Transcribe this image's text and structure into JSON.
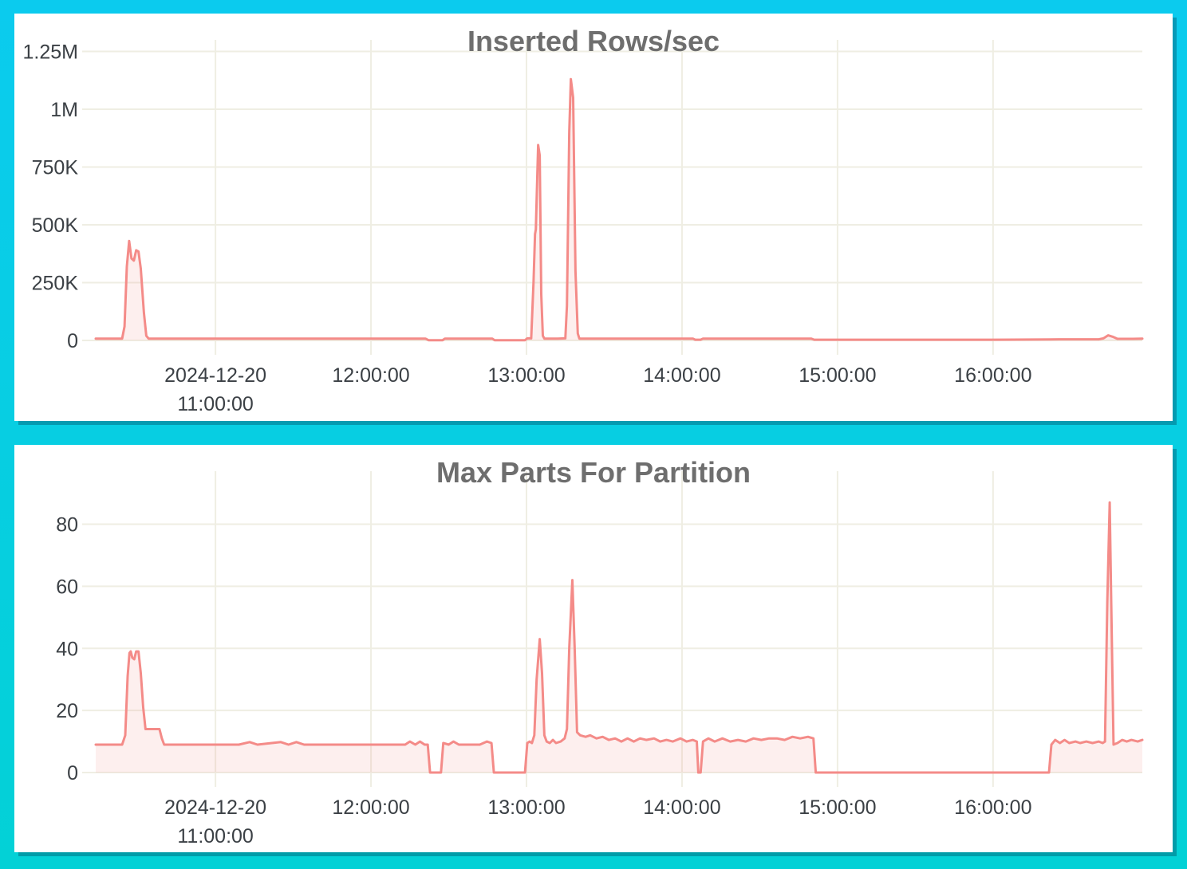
{
  "theme": {
    "background_top": "#0bcbee",
    "background_bottom": "#03d1d6",
    "panel_bg": "#ffffff",
    "line_color": "#f48b88",
    "fill_color": "rgba(242,139,135,0.14)",
    "grid_color": "#efeee3",
    "tick_label_color": "#3b4045",
    "title_color": "#6e6e6e"
  },
  "chart_data": [
    {
      "type": "area",
      "title": "Inserted Rows/sec",
      "xlabel": "",
      "ylabel": "",
      "grid": true,
      "legend": "none",
      "x_unit": "time of day on 2024-12-20, decimal hours",
      "xlim": [
        10.23,
        16.96
      ],
      "ylim": [
        0,
        1300000
      ],
      "x_ticks": [
        {
          "value": 11,
          "label": "2024-12-20\n11:00:00"
        },
        {
          "value": 12,
          "label": "12:00:00"
        },
        {
          "value": 13,
          "label": "13:00:00"
        },
        {
          "value": 14,
          "label": "14:00:00"
        },
        {
          "value": 15,
          "label": "15:00:00"
        },
        {
          "value": 16,
          "label": "16:00:00"
        }
      ],
      "y_ticks": [
        {
          "value": 0,
          "label": "0"
        },
        {
          "value": 250000,
          "label": "250K"
        },
        {
          "value": 500000,
          "label": "500K"
        },
        {
          "value": 750000,
          "label": "750K"
        },
        {
          "value": 1000000,
          "label": "1M"
        },
        {
          "value": 1250000,
          "label": "1.25M"
        }
      ],
      "series": [
        {
          "name": "inserted rows/sec",
          "points": [
            [
              10.23,
              8000
            ],
            [
              10.4,
              8000
            ],
            [
              10.415,
              60000
            ],
            [
              10.43,
              320000
            ],
            [
              10.445,
              430000
            ],
            [
              10.46,
              355000
            ],
            [
              10.475,
              345000
            ],
            [
              10.49,
              390000
            ],
            [
              10.505,
              385000
            ],
            [
              10.52,
              310000
            ],
            [
              10.54,
              120000
            ],
            [
              10.555,
              20000
            ],
            [
              10.57,
              8000
            ],
            [
              11.0,
              8000
            ],
            [
              11.6,
              8000
            ],
            [
              12.0,
              8000
            ],
            [
              12.35,
              8000
            ],
            [
              12.37,
              1000
            ],
            [
              12.46,
              1000
            ],
            [
              12.475,
              8000
            ],
            [
              12.6,
              8000
            ],
            [
              12.78,
              8000
            ],
            [
              12.795,
              1000
            ],
            [
              12.99,
              1000
            ],
            [
              13.005,
              9000
            ],
            [
              13.03,
              9000
            ],
            [
              13.045,
              250000
            ],
            [
              13.055,
              460000
            ],
            [
              13.06,
              480000
            ],
            [
              13.075,
              845000
            ],
            [
              13.085,
              800000
            ],
            [
              13.095,
              200000
            ],
            [
              13.105,
              20000
            ],
            [
              13.115,
              8000
            ],
            [
              13.2,
              8000
            ],
            [
              13.25,
              9000
            ],
            [
              13.26,
              150000
            ],
            [
              13.275,
              900000
            ],
            [
              13.285,
              1130000
            ],
            [
              13.3,
              1050000
            ],
            [
              13.315,
              300000
            ],
            [
              13.33,
              30000
            ],
            [
              13.34,
              8000
            ],
            [
              13.6,
              8000
            ],
            [
              14.0,
              8000
            ],
            [
              14.07,
              8000
            ],
            [
              14.085,
              3000
            ],
            [
              14.12,
              3000
            ],
            [
              14.135,
              8000
            ],
            [
              14.5,
              8000
            ],
            [
              14.83,
              8000
            ],
            [
              14.85,
              3000
            ],
            [
              15.3,
              3000
            ],
            [
              16.0,
              3000
            ],
            [
              16.37,
              4000
            ],
            [
              16.42,
              5000
            ],
            [
              16.68,
              5000
            ],
            [
              16.71,
              9000
            ],
            [
              16.74,
              22000
            ],
            [
              16.77,
              16000
            ],
            [
              16.8,
              7000
            ],
            [
              16.9,
              7000
            ],
            [
              16.96,
              8000
            ]
          ]
        }
      ]
    },
    {
      "type": "area",
      "title": "Max Parts For Partition",
      "xlabel": "",
      "ylabel": "",
      "grid": true,
      "legend": "none",
      "x_unit": "time of day on 2024-12-20, decimal hours",
      "xlim": [
        10.23,
        16.96
      ],
      "ylim": [
        0,
        94
      ],
      "x_ticks": [
        {
          "value": 11,
          "label": "2024-12-20\n11:00:00"
        },
        {
          "value": 12,
          "label": "12:00:00"
        },
        {
          "value": 13,
          "label": "13:00:00"
        },
        {
          "value": 14,
          "label": "14:00:00"
        },
        {
          "value": 15,
          "label": "15:00:00"
        },
        {
          "value": 16,
          "label": "16:00:00"
        }
      ],
      "y_ticks": [
        {
          "value": 0,
          "label": "0"
        },
        {
          "value": 20,
          "label": "20"
        },
        {
          "value": 40,
          "label": "40"
        },
        {
          "value": 60,
          "label": "60"
        },
        {
          "value": 80,
          "label": "80"
        }
      ],
      "series": [
        {
          "name": "max parts for partition",
          "points": [
            [
              10.23,
              9
            ],
            [
              10.4,
              9
            ],
            [
              10.42,
              12
            ],
            [
              10.435,
              31
            ],
            [
              10.447,
              38.5
            ],
            [
              10.455,
              39
            ],
            [
              10.465,
              37
            ],
            [
              10.478,
              36.5
            ],
            [
              10.49,
              39
            ],
            [
              10.505,
              39
            ],
            [
              10.52,
              32
            ],
            [
              10.535,
              21
            ],
            [
              10.55,
              14
            ],
            [
              10.6,
              14
            ],
            [
              10.64,
              14
            ],
            [
              10.655,
              11
            ],
            [
              10.67,
              9
            ],
            [
              10.9,
              9
            ],
            [
              11.15,
              9
            ],
            [
              11.22,
              9.8
            ],
            [
              11.27,
              9
            ],
            [
              11.42,
              9.8
            ],
            [
              11.47,
              9
            ],
            [
              11.52,
              9.8
            ],
            [
              11.57,
              9
            ],
            [
              11.8,
              9
            ],
            [
              12.05,
              9
            ],
            [
              12.22,
              9
            ],
            [
              12.25,
              10
            ],
            [
              12.285,
              9
            ],
            [
              12.315,
              10
            ],
            [
              12.345,
              9
            ],
            [
              12.365,
              9
            ],
            [
              12.38,
              0
            ],
            [
              12.45,
              0
            ],
            [
              12.465,
              9.5
            ],
            [
              12.5,
              9
            ],
            [
              12.53,
              10
            ],
            [
              12.565,
              9
            ],
            [
              12.7,
              9
            ],
            [
              12.745,
              10
            ],
            [
              12.775,
              9.5
            ],
            [
              12.79,
              0
            ],
            [
              12.99,
              0
            ],
            [
              13.005,
              9.5
            ],
            [
              13.02,
              10
            ],
            [
              13.035,
              9.5
            ],
            [
              13.05,
              12
            ],
            [
              13.065,
              30
            ],
            [
              13.085,
              43
            ],
            [
              13.1,
              32
            ],
            [
              13.115,
              12
            ],
            [
              13.13,
              10
            ],
            [
              13.15,
              9.5
            ],
            [
              13.17,
              10.5
            ],
            [
              13.19,
              9.5
            ],
            [
              13.22,
              10
            ],
            [
              13.245,
              11
            ],
            [
              13.26,
              14
            ],
            [
              13.275,
              40
            ],
            [
              13.295,
              62
            ],
            [
              13.31,
              40
            ],
            [
              13.325,
              13
            ],
            [
              13.345,
              12
            ],
            [
              13.38,
              11.5
            ],
            [
              13.41,
              12
            ],
            [
              13.45,
              11
            ],
            [
              13.49,
              11.5
            ],
            [
              13.53,
              10.5
            ],
            [
              13.57,
              11
            ],
            [
              13.61,
              10
            ],
            [
              13.65,
              11
            ],
            [
              13.69,
              10
            ],
            [
              13.73,
              11
            ],
            [
              13.77,
              10.5
            ],
            [
              13.82,
              11
            ],
            [
              13.86,
              10
            ],
            [
              13.9,
              10.5
            ],
            [
              13.94,
              10
            ],
            [
              13.99,
              11
            ],
            [
              14.03,
              10
            ],
            [
              14.07,
              10.5
            ],
            [
              14.095,
              10
            ],
            [
              14.105,
              0
            ],
            [
              14.12,
              0
            ],
            [
              14.135,
              10
            ],
            [
              14.17,
              11
            ],
            [
              14.21,
              10
            ],
            [
              14.26,
              11
            ],
            [
              14.31,
              10
            ],
            [
              14.36,
              10.5
            ],
            [
              14.41,
              10
            ],
            [
              14.46,
              11
            ],
            [
              14.51,
              10.5
            ],
            [
              14.56,
              11
            ],
            [
              14.61,
              11
            ],
            [
              14.66,
              10.5
            ],
            [
              14.71,
              11.5
            ],
            [
              14.76,
              11
            ],
            [
              14.81,
              11.5
            ],
            [
              14.845,
              11
            ],
            [
              14.86,
              0
            ],
            [
              15.2,
              0
            ],
            [
              15.8,
              0
            ],
            [
              16.36,
              0
            ],
            [
              16.375,
              9
            ],
            [
              16.4,
              10.5
            ],
            [
              16.43,
              9.5
            ],
            [
              16.46,
              10.5
            ],
            [
              16.49,
              9.5
            ],
            [
              16.53,
              10
            ],
            [
              16.56,
              9.5
            ],
            [
              16.6,
              10
            ],
            [
              16.64,
              9.5
            ],
            [
              16.68,
              10
            ],
            [
              16.705,
              9.5
            ],
            [
              16.72,
              10
            ],
            [
              16.735,
              55
            ],
            [
              16.75,
              87
            ],
            [
              16.76,
              55
            ],
            [
              16.775,
              9
            ],
            [
              16.8,
              9.5
            ],
            [
              16.83,
              10.5
            ],
            [
              16.86,
              10
            ],
            [
              16.89,
              10.5
            ],
            [
              16.93,
              10
            ],
            [
              16.96,
              10.5
            ]
          ]
        }
      ]
    }
  ]
}
